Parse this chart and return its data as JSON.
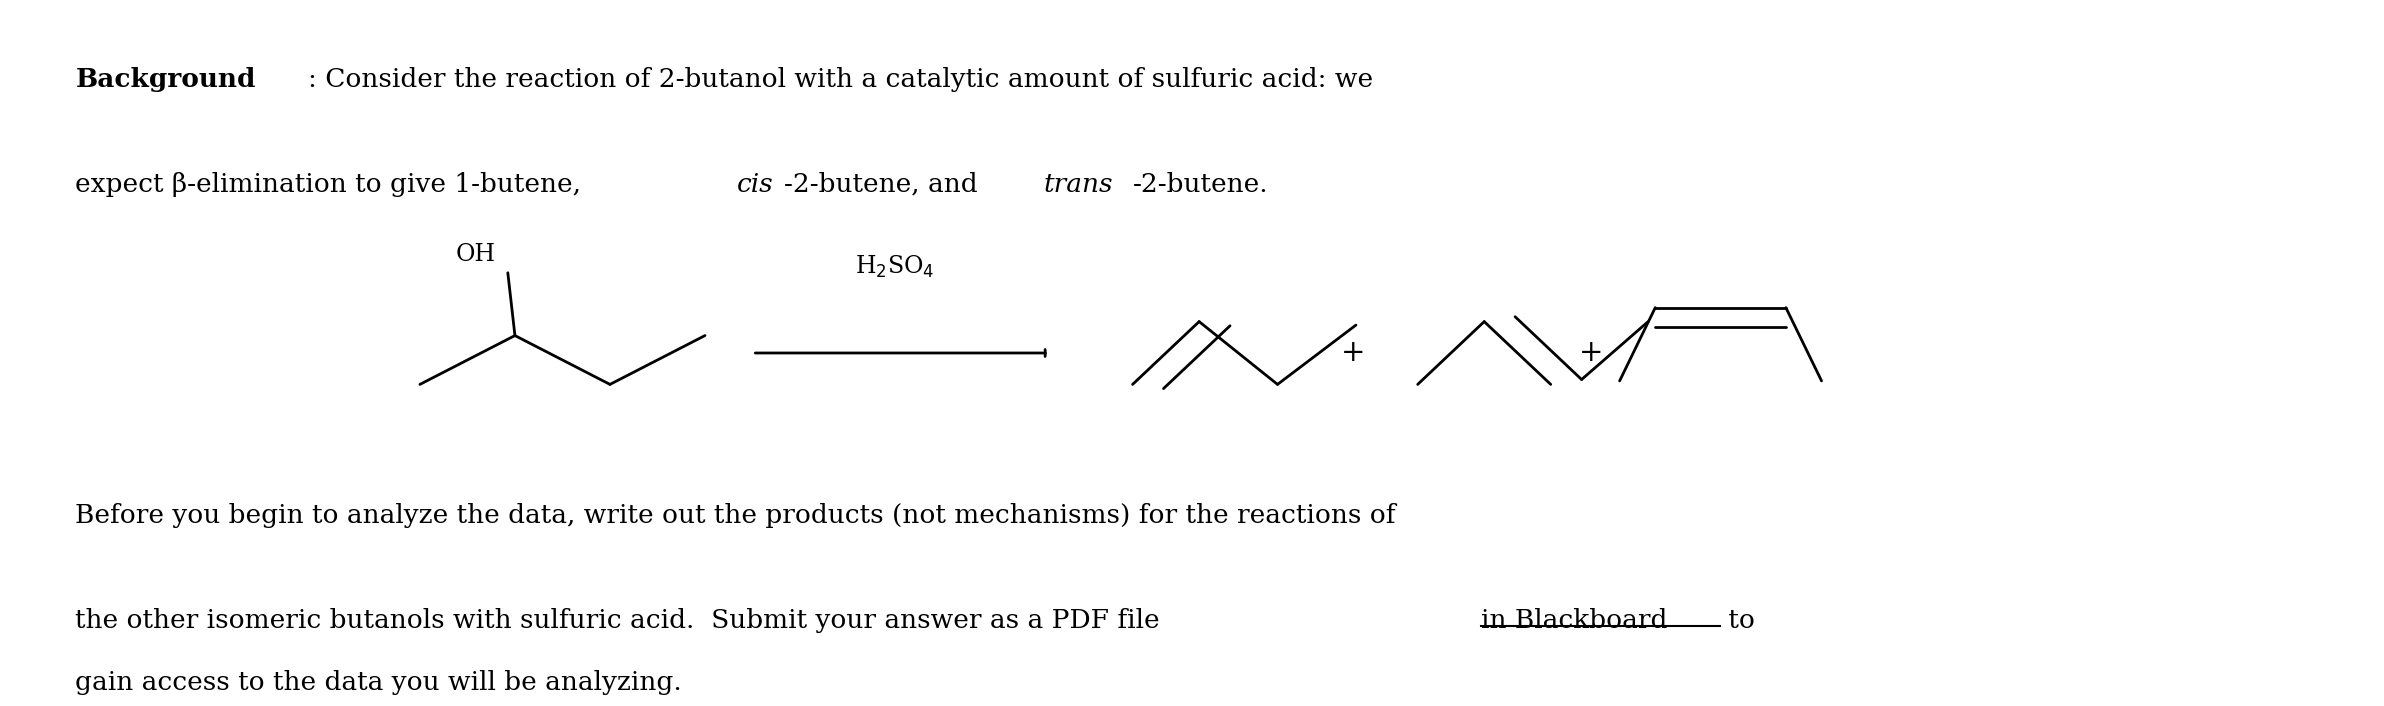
{
  "background_color": "#ffffff",
  "fig_width": 23.84,
  "fig_height": 7.06,
  "dpi": 100,
  "line1_bold": "Background",
  "line1_colon": ": Consider the reaction of 2-butanol with a catalytic amount of sulfuric acid: we",
  "line2_text": "expect β-elimination to give 1-butene, ",
  "line2_italic1": "cis",
  "line2_after1": "-2-butene, and ",
  "line2_italic2": "trans",
  "line2_after2": "-2-butene.",
  "para2_line1": "Before you begin to analyze the data, write out the products (not mechanisms) for the reactions of",
  "para2_line2_prefix": "the other isomeric butanols with sulfuric acid.  Submit your answer as a PDF file ",
  "para2_line2_underline": "in Blackboard",
  "para2_line2_suffix": " to",
  "para2_line3": "gain access to the data you will be analyzing.",
  "font_size": 19,
  "font_family": "DejaVu Serif",
  "line_width": 2.0,
  "text_color": "#000000"
}
